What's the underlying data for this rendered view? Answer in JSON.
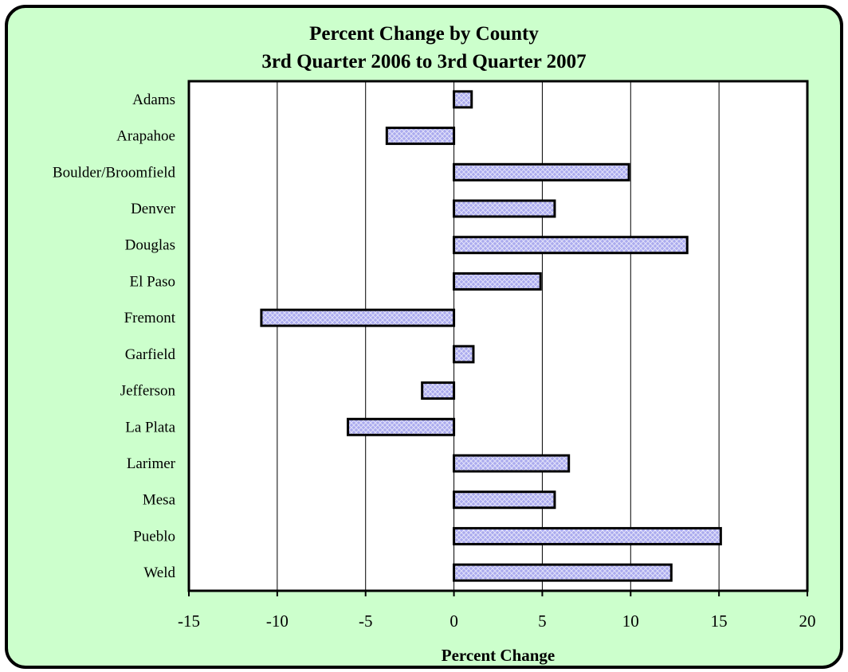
{
  "chart_data": {
    "type": "bar",
    "orientation": "horizontal",
    "title": "Percent Change by County",
    "subtitle": "3rd Quarter 2006 to 3rd Quarter 2007",
    "xlabel": "Percent Change",
    "ylabel": "",
    "xlim": [
      -15,
      20
    ],
    "x_ticks": [
      -15,
      -10,
      -5,
      0,
      5,
      10,
      15,
      20
    ],
    "x_tick_labels": [
      "-15",
      "-10",
      "-5",
      "0",
      "5",
      "10",
      "15",
      "20"
    ],
    "grid": "vertical major gridlines on",
    "legend": "none",
    "categories": [
      "Adams",
      "Arapahoe",
      "Boulder/Broomfield",
      "Denver",
      "Douglas",
      "El Paso",
      "Fremont",
      "Garfield",
      "Jefferson",
      "La Plata",
      "Larimer",
      "Mesa",
      "Pueblo",
      "Weld"
    ],
    "values": [
      1.0,
      -3.8,
      9.9,
      5.7,
      13.2,
      4.9,
      -10.9,
      1.1,
      -1.8,
      -6.0,
      6.5,
      5.7,
      15.1,
      12.3
    ],
    "colors": {
      "bar_fill": "#aaaaee",
      "bar_hatch": "#ffffff",
      "bar_stroke": "#000000",
      "plot_background": "#ffffff",
      "frame_background": "#ccffcc",
      "gridline": "#000000"
    }
  }
}
